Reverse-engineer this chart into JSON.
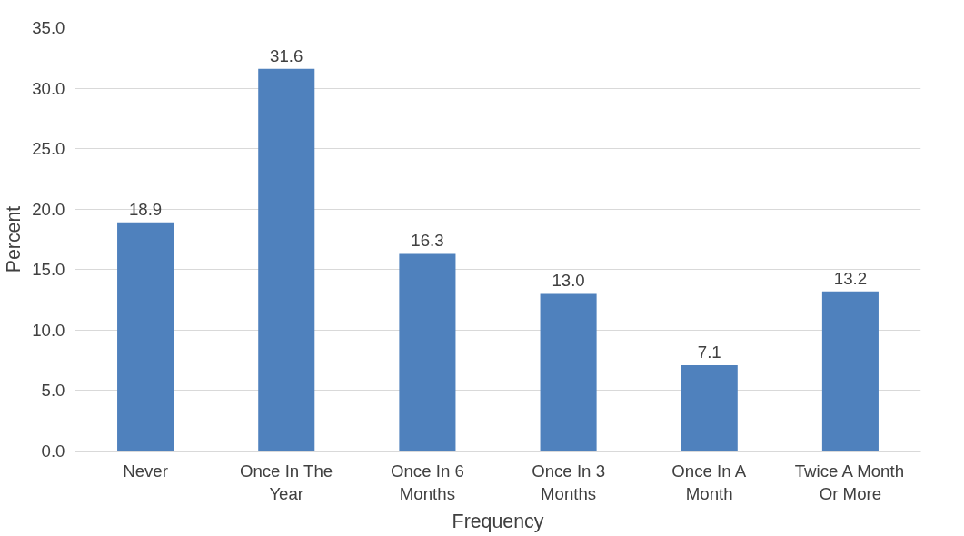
{
  "chart_data": {
    "type": "bar",
    "xlabel": "Frequency",
    "ylabel": "Percent",
    "categories": [
      "Never",
      "Once In The Year",
      "Once In 6 Months",
      "Once In 3 Months",
      "Once In A Month",
      "Twice A Month Or More"
    ],
    "values": [
      18.9,
      31.6,
      16.3,
      13.0,
      7.1,
      13.2
    ],
    "value_labels": [
      "18.9",
      "31.6",
      "16.3",
      "13.0",
      "7.1",
      "13.2"
    ],
    "color": "#4f81bd",
    "ylim": [
      0,
      35
    ],
    "yticks": [
      {
        "value": 0,
        "label": "0.0"
      },
      {
        "value": 5,
        "label": "5.0"
      },
      {
        "value": 10,
        "label": "10.0"
      },
      {
        "value": 15,
        "label": "15.0"
      },
      {
        "value": 20,
        "label": "20.0"
      },
      {
        "value": 25,
        "label": "25.0"
      },
      {
        "value": 30,
        "label": "30.0"
      },
      {
        "value": 35,
        "label": "35.0"
      }
    ],
    "grid": "y"
  }
}
